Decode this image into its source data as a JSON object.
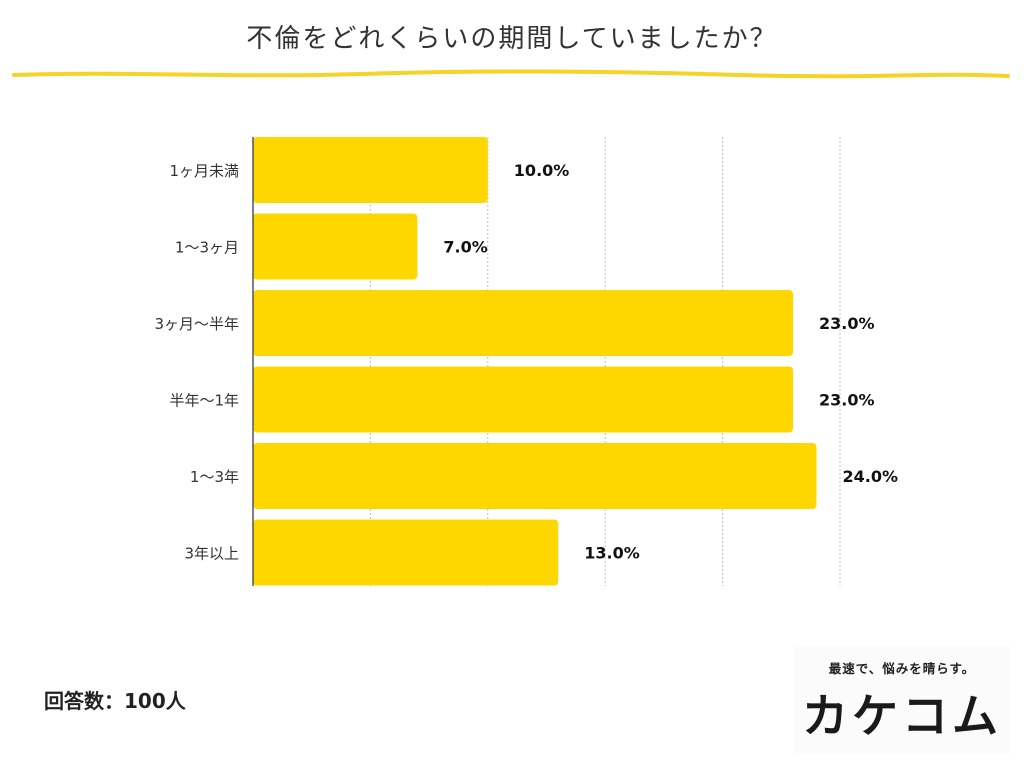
{
  "title": "不倫をどれくらいの期間していましたか？",
  "respondents": "回答数：100人",
  "logo": {
    "tagline": "最速で、悩みを晴らす。",
    "wordmark": "カケコム"
  },
  "colors": {
    "bar": "#FFD700",
    "accent_line": "#F5D327",
    "grid": "#bfbfbf",
    "axis": "#555555"
  },
  "chart_data": {
    "type": "bar",
    "orientation": "horizontal",
    "title": "不倫をどれくらいの期間していましたか？",
    "categories": [
      "1ヶ月未満",
      "1〜3ヶ月",
      "3ヶ月〜半年",
      "半年〜1年",
      "1〜3年",
      "3年以上"
    ],
    "values": [
      10.0,
      7.0,
      23.0,
      23.0,
      24.0,
      13.0
    ],
    "value_labels": [
      "10.0%",
      "7.0%",
      "23.0%",
      "23.0%",
      "24.0%",
      "13.0%"
    ],
    "unit": "%",
    "xlim": [
      0,
      25
    ],
    "grid": true,
    "legend": "none"
  }
}
